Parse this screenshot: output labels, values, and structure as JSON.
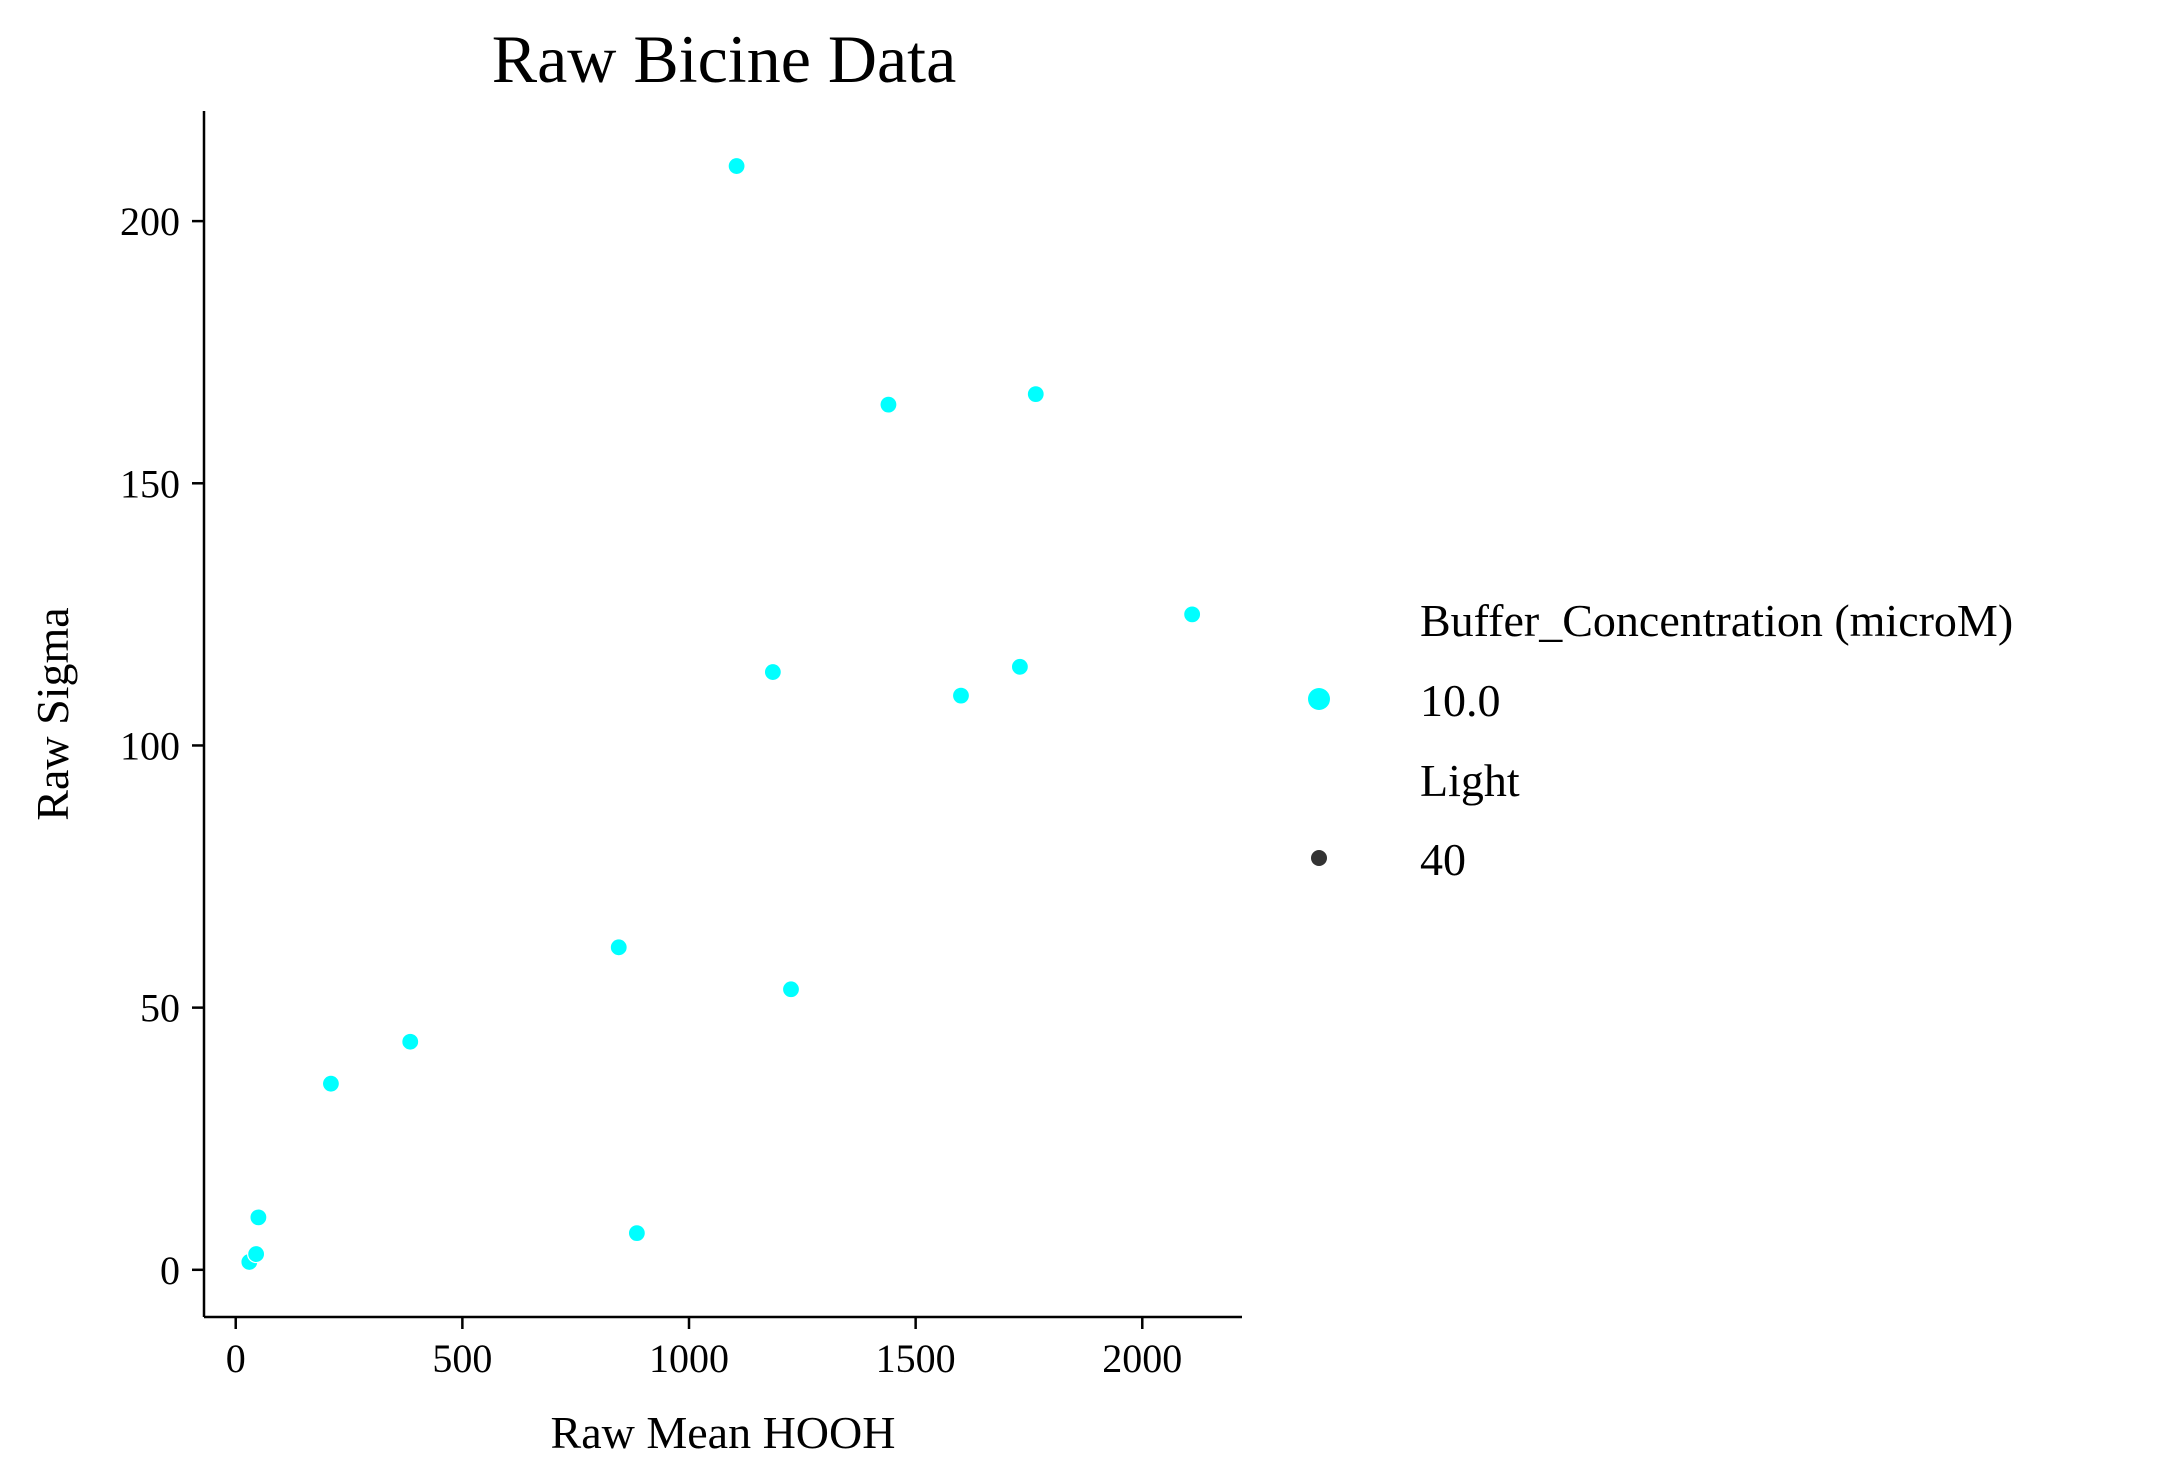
{
  "chart_data": {
    "type": "scatter",
    "title": "Raw Bicine Data",
    "xlabel": "Raw Mean HOOH",
    "ylabel": "Raw Sigma",
    "xlim": [
      -70,
      2220
    ],
    "ylim": [
      -9,
      221
    ],
    "xticks": [
      0,
      500,
      1000,
      1500,
      2000
    ],
    "yticks": [
      0,
      50,
      100,
      150,
      200
    ],
    "grid": false,
    "legend_position": "right",
    "marker_color": "#00ffff",
    "legend": {
      "hue_title": "Buffer_Concentration (microM)",
      "hue_entries": [
        {
          "label": "10.0",
          "color": "#00ffff"
        }
      ],
      "size_title": "Light",
      "size_entries": [
        {
          "label": "40",
          "color": "#333333"
        }
      ]
    },
    "series": [
      {
        "x": [
          30,
          45,
          50,
          210,
          385,
          845,
          885,
          1105,
          1185,
          1225,
          1440,
          1600,
          1730,
          1765,
          2110
        ],
        "y": [
          1.5,
          3,
          10,
          35.5,
          43.5,
          61.5,
          7,
          210.5,
          114,
          53.5,
          165,
          109.5,
          115,
          167,
          125
        ]
      }
    ]
  }
}
